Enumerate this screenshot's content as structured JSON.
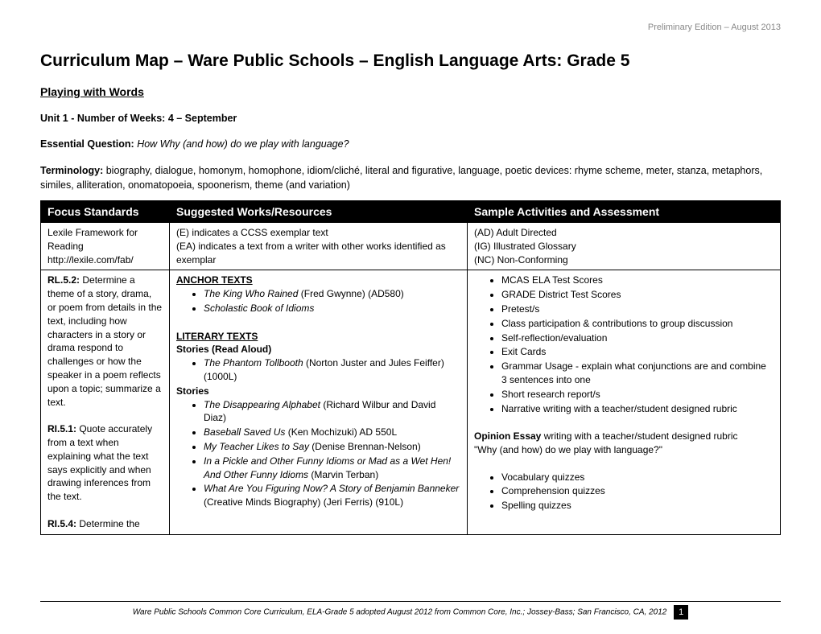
{
  "header_note": "Preliminary Edition – August 2013",
  "main_title": "Curriculum Map – Ware Public Schools – English Language Arts:  Grade 5",
  "subtitle": "Playing with Words",
  "unit_line": "Unit 1 - Number of Weeks: 4 – September",
  "eq_label": "Essential Question:",
  "eq_how": "How ",
  "eq_rest": "Why (and how) do we play with language?",
  "term_label": "Terminology:",
  "term_text": " biography, dialogue, homonym, homophone, idiom/cliché, literal and figurative, language, poetic devices: rhyme scheme, meter, stanza, metaphors, similes, alliteration, onomatopoeia, spoonerism, theme (and variation)",
  "table": {
    "headers": {
      "col1": "Focus Standards",
      "col2": "Suggested Works/Resources",
      "col3": "Sample Activities and Assessment"
    },
    "legend": {
      "col1_l1": "Lexile Framework for Reading",
      "col1_l2": "http://lexile.com/fab/",
      "col2_l1": "(E) indicates a CCSS exemplar text",
      "col2_l2": "(EA) indicates a text from a writer with other works identified as exemplar",
      "col3_l1": "(AD) Adult Directed",
      "col3_l2": "(IG) Illustrated Glossary",
      "col3_l3": "(NC) Non-Conforming"
    },
    "body": {
      "col1": {
        "s1_code": "RL.5.2:",
        "s1_text": " Determine a theme of a story, drama, or poem from details in the text, including how characters in a story or drama respond to challenges or how the speaker in a poem reflects upon a topic; summarize a text.",
        "s2_code": "RI.5.1:",
        "s2_text": " Quote accurately from a text when explaining what the text says explicitly and when drawing inferences from the text.",
        "s3_code": "RI.5.4:",
        "s3_text": " Determine the"
      },
      "col2": {
        "anchor_head": "ANCHOR TEXTS",
        "anchor_items": [
          {
            "title": "The King Who Rained",
            "rest": " (Fred Gwynne) (AD580)"
          },
          {
            "title": "Scholastic Book of Idioms",
            "rest": ""
          }
        ],
        "lit_head": "LITERARY TEXTS",
        "stories_ra": "Stories (Read Aloud)",
        "ra_items": [
          {
            "title": "The Phantom Tollbooth",
            "rest": " (Norton Juster and Jules Feiffer) (1000L)"
          }
        ],
        "stories": "Stories",
        "st_items": [
          {
            "title": "The Disappearing Alphabet",
            "rest": " (Richard Wilbur and David Diaz)"
          },
          {
            "title": "Baseball Saved Us",
            "rest": " (Ken Mochizuki) AD 550L"
          },
          {
            "title": "My Teacher Likes to Say",
            "rest": " (Denise Brennan-Nelson)"
          },
          {
            "title": "In a Pickle and Other Funny Idioms or Mad as a Wet Hen! And Other Funny Idioms",
            "rest": " (Marvin Terban)"
          },
          {
            "title": "What Are You Figuring Now?  A Story of Benjamin Banneker ",
            "rest": " (Creative Minds Biography) (Jeri Ferris) (910L)"
          }
        ]
      },
      "col3": {
        "items1": [
          "MCAS ELA Test Scores",
          "GRADE District Test Scores",
          "Pretest/s",
          "Class participation & contributions to group discussion",
          "Self-reflection/evaluation",
          "Exit Cards",
          "Grammar Usage - explain what conjunctions are and combine 3 sentences into one",
          "Short research report/s",
          "Narrative writing with a teacher/student designed rubric"
        ],
        "opinion_label": "Opinion Essay",
        "opinion_rest": " writing with a teacher/student designed rubric",
        "opinion_q": "\"Why (and how) do we play with language?\"",
        "items2": [
          "Vocabulary quizzes",
          "Comprehension quizzes",
          "Spelling quizzes"
        ]
      }
    }
  },
  "footer_text": "Ware Public Schools Common Core Curriculum, ELA-Grade 5 adopted August 2012 from Common Core, Inc.; Jossey-Bass; San Francisco, CA, 2012",
  "footer_page": "1"
}
